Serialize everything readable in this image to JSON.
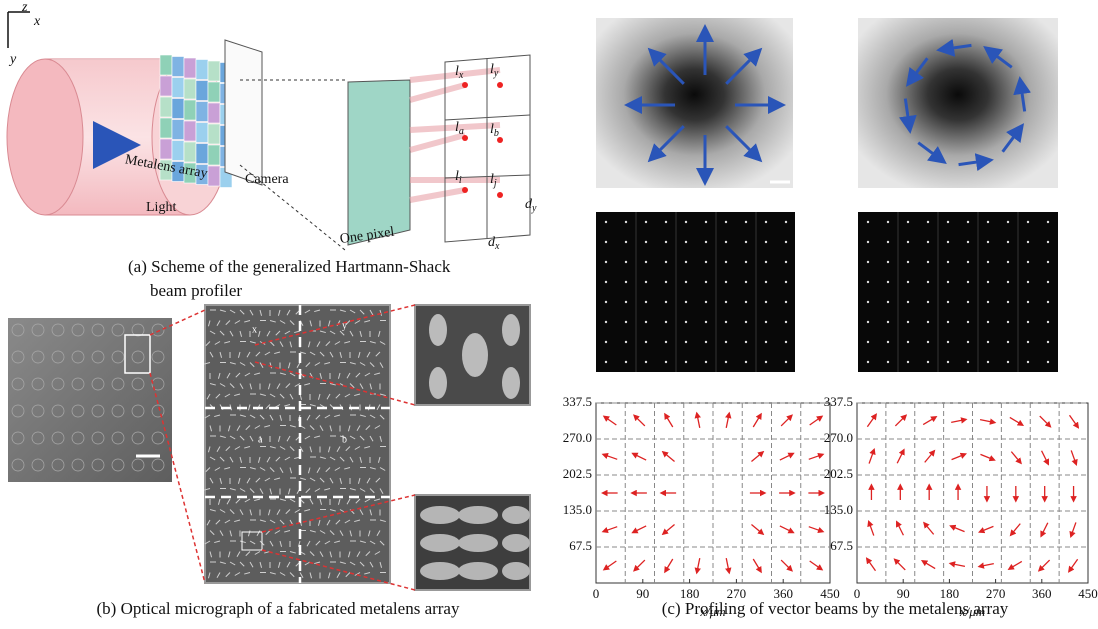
{
  "panel_a": {
    "axis_z": "z",
    "axis_x": "x",
    "axis_y": "y",
    "metalens": "Metalens array",
    "camera": "Camera",
    "light": "Light",
    "pixel": "One pixel",
    "spots": [
      {
        "main": "l",
        "sub": "x"
      },
      {
        "main": "l",
        "sub": "y"
      },
      {
        "main": "l",
        "sub": "a"
      },
      {
        "main": "l",
        "sub": "b"
      },
      {
        "main": "l",
        "sub": "i"
      },
      {
        "main": "l",
        "sub": "j"
      }
    ],
    "dy": {
      "main": "d",
      "sub": "y"
    },
    "dx": {
      "main": "d",
      "sub": "x"
    },
    "caption": [
      "(a) Scheme of the generalized Hartmann-Shack",
      "beam profiler"
    ]
  },
  "panel_b": {
    "labels": [
      "x",
      "y",
      "a",
      "b"
    ],
    "caption": "(b) Optical micrograph of a fabricated metalens array"
  },
  "panel_c": {
    "caption": "(c) Profiling of vector beams by the metalens array",
    "plots": [
      {
        "xlabel": "x/μm",
        "xlim": [
          0,
          450
        ],
        "ylim": [
          0,
          337.5
        ],
        "xticks": [
          0,
          90,
          180,
          270,
          360,
          450
        ],
        "yticks": [
          67.5,
          {
            "value": 135,
            "label": "135.0"
          },
          202.5,
          {
            "value": 270,
            "label": "270.0"
          },
          337.5
        ]
      },
      {
        "xlabel": "x/μm",
        "xlim": [
          0,
          450
        ],
        "ylim": [
          0,
          337.5
        ],
        "xticks": [
          0,
          90,
          180,
          270,
          360,
          450
        ],
        "yticks": [
          67.5,
          {
            "value": 135,
            "label": "135.0"
          },
          202.5,
          {
            "value": 270,
            "label": "270.0"
          },
          337.5
        ]
      }
    ]
  }
}
